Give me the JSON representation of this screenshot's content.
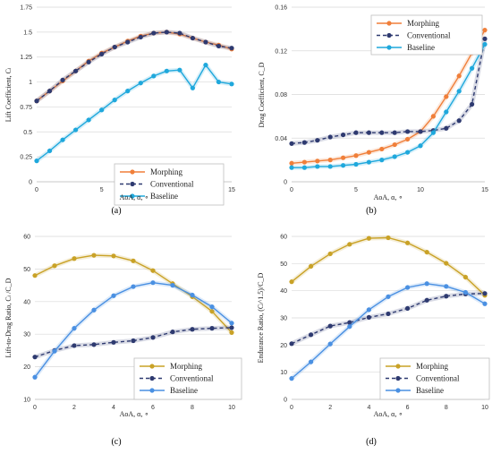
{
  "chart_data": [
    {
      "type": "line",
      "panel_label": "(a)",
      "xlabel": "AoA, α, ∘",
      "ylabel": "Lift Coefficient, Cₗ",
      "xlim": [
        0,
        15
      ],
      "ylim": [
        0,
        1.75
      ],
      "x_ticks": [
        "0",
        "5",
        "10",
        "15"
      ],
      "y_ticks": [
        "0",
        "0.25",
        "0.5",
        "0.75",
        "1",
        "1.25",
        "1.5",
        "1.75"
      ],
      "grid": "horizontal",
      "legend_position": "bottom-right",
      "series": [
        {
          "name": "Morphing",
          "color": "#F07F3A",
          "style": "solid",
          "x": [
            0,
            1,
            2,
            3,
            4,
            5,
            6,
            7,
            8,
            9,
            10,
            11,
            12,
            13,
            14,
            15
          ],
          "y": [
            0.81,
            0.91,
            1.01,
            1.11,
            1.21,
            1.29,
            1.35,
            1.41,
            1.46,
            1.49,
            1.5,
            1.48,
            1.44,
            1.4,
            1.37,
            1.33
          ]
        },
        {
          "name": "Conventional",
          "color": "#2E3A70",
          "style": "dashed",
          "x": [
            0,
            1,
            2,
            3,
            4,
            5,
            6,
            7,
            8,
            9,
            10,
            11,
            12,
            13,
            14,
            15
          ],
          "y": [
            0.81,
            0.91,
            1.02,
            1.11,
            1.2,
            1.28,
            1.35,
            1.4,
            1.45,
            1.49,
            1.5,
            1.49,
            1.44,
            1.4,
            1.36,
            1.34
          ]
        },
        {
          "name": "Baseline",
          "color": "#1FA8DC",
          "style": "solid",
          "x": [
            0,
            1,
            2,
            3,
            4,
            5,
            6,
            7,
            8,
            9,
            10,
            11,
            12,
            13,
            14,
            15
          ],
          "y": [
            0.21,
            0.31,
            0.42,
            0.52,
            0.62,
            0.72,
            0.82,
            0.91,
            0.99,
            1.06,
            1.11,
            1.12,
            0.94,
            1.17,
            1.0,
            0.98
          ]
        }
      ]
    },
    {
      "type": "line",
      "panel_label": "(b)",
      "xlabel": "AoA, α, ∘",
      "ylabel": "Drag Coefficient, C_D",
      "xlim": [
        0,
        15
      ],
      "ylim": [
        0,
        0.16
      ],
      "x_ticks": [
        "0",
        "5",
        "10",
        "15"
      ],
      "y_ticks": [
        "0",
        "0.04",
        "0.08",
        "0.12",
        "0.16"
      ],
      "grid": "horizontal",
      "legend_position": "top-right",
      "series": [
        {
          "name": "Morphing",
          "color": "#F07F3A",
          "style": "solid",
          "x": [
            0,
            1,
            2,
            3,
            4,
            5,
            6,
            7,
            8,
            9,
            10,
            11,
            12,
            13,
            14,
            15
          ],
          "y": [
            0.017,
            0.018,
            0.019,
            0.02,
            0.022,
            0.024,
            0.027,
            0.03,
            0.034,
            0.039,
            0.046,
            0.06,
            0.078,
            0.097,
            0.118,
            0.139
          ]
        },
        {
          "name": "Conventional",
          "color": "#2E3A70",
          "style": "dashed",
          "x": [
            0,
            1,
            2,
            3,
            4,
            5,
            6,
            7,
            8,
            9,
            10,
            11,
            12,
            13,
            14,
            15
          ],
          "y": [
            0.035,
            0.036,
            0.038,
            0.041,
            0.043,
            0.045,
            0.045,
            0.045,
            0.045,
            0.046,
            0.046,
            0.047,
            0.049,
            0.056,
            0.071,
            0.131
          ]
        },
        {
          "name": "Baseline",
          "color": "#1FA8DC",
          "style": "solid",
          "x": [
            0,
            1,
            2,
            3,
            4,
            5,
            6,
            7,
            8,
            9,
            10,
            11,
            12,
            13,
            14,
            15
          ],
          "y": [
            0.013,
            0.013,
            0.014,
            0.014,
            0.015,
            0.016,
            0.018,
            0.02,
            0.023,
            0.027,
            0.033,
            0.045,
            0.064,
            0.083,
            0.104,
            0.126
          ]
        }
      ]
    },
    {
      "type": "line",
      "panel_label": "(c)",
      "xlabel": "AoA, α, ∘",
      "ylabel": "Lift-to-Drag Ratio, Cₗ /C_D",
      "xlim": [
        0,
        10
      ],
      "ylim": [
        10,
        60
      ],
      "x_ticks": [
        "0",
        "2",
        "4",
        "6",
        "8",
        "10"
      ],
      "y_ticks": [
        "10",
        "20",
        "30",
        "40",
        "50",
        "60"
      ],
      "grid": "horizontal",
      "legend_position": "bottom-right",
      "series": [
        {
          "name": "Morphing",
          "color": "#C9A227",
          "style": "solid",
          "x": [
            0,
            1,
            2,
            3,
            4,
            5,
            6,
            7,
            8,
            9,
            10
          ],
          "y": [
            48.0,
            51.0,
            53.2,
            54.2,
            54.0,
            52.5,
            49.5,
            45.5,
            41.5,
            37.0,
            30.5
          ]
        },
        {
          "name": "Conventional",
          "color": "#2E3A70",
          "style": "dashed",
          "x": [
            0,
            1,
            2,
            3,
            4,
            5,
            6,
            7,
            8,
            9,
            10
          ],
          "y": [
            23.0,
            25.0,
            26.5,
            26.8,
            27.5,
            28.0,
            29.0,
            30.7,
            31.5,
            31.8,
            32.0
          ]
        },
        {
          "name": "Baseline",
          "color": "#4A90E2",
          "style": "solid",
          "x": [
            0,
            1,
            2,
            3,
            4,
            5,
            6,
            7,
            8,
            9,
            10
          ],
          "y": [
            16.8,
            24.8,
            31.8,
            37.4,
            41.8,
            44.6,
            45.8,
            45.0,
            42.0,
            38.4,
            33.4
          ]
        }
      ]
    },
    {
      "type": "line",
      "panel_label": "(d)",
      "xlabel": "AoA, α, ∘",
      "ylabel": "Endurance Ratio, (Cₗ^1.5)/C_D",
      "xlim": [
        0,
        10
      ],
      "ylim": [
        0,
        60
      ],
      "x_ticks": [
        "0",
        "2",
        "4",
        "6",
        "8",
        "10"
      ],
      "y_ticks": [
        "0",
        "10",
        "20",
        "30",
        "40",
        "50",
        "60"
      ],
      "grid": "horizontal",
      "legend_position": "bottom-right",
      "series": [
        {
          "name": "Morphing",
          "color": "#C9A227",
          "style": "solid",
          "x": [
            0,
            1,
            2,
            3,
            4,
            5,
            6,
            7,
            8,
            9,
            10
          ],
          "y": [
            43.3,
            49.0,
            53.6,
            57.1,
            59.3,
            59.5,
            57.6,
            54.2,
            50.1,
            45.0,
            38.3
          ]
        },
        {
          "name": "Conventional",
          "color": "#2E3A70",
          "style": "dashed",
          "x": [
            0,
            1,
            2,
            3,
            4,
            5,
            6,
            7,
            8,
            9,
            10
          ],
          "y": [
            20.5,
            23.8,
            27.0,
            28.3,
            30.2,
            31.5,
            33.5,
            36.5,
            38.0,
            38.8,
            39.0
          ]
        },
        {
          "name": "Baseline",
          "color": "#4A90E2",
          "style": "solid",
          "x": [
            0,
            1,
            2,
            3,
            4,
            5,
            6,
            7,
            8,
            9,
            10
          ],
          "y": [
            7.7,
            13.8,
            20.4,
            26.8,
            33.0,
            37.8,
            41.2,
            42.6,
            41.6,
            39.4,
            35.2
          ]
        }
      ]
    }
  ]
}
